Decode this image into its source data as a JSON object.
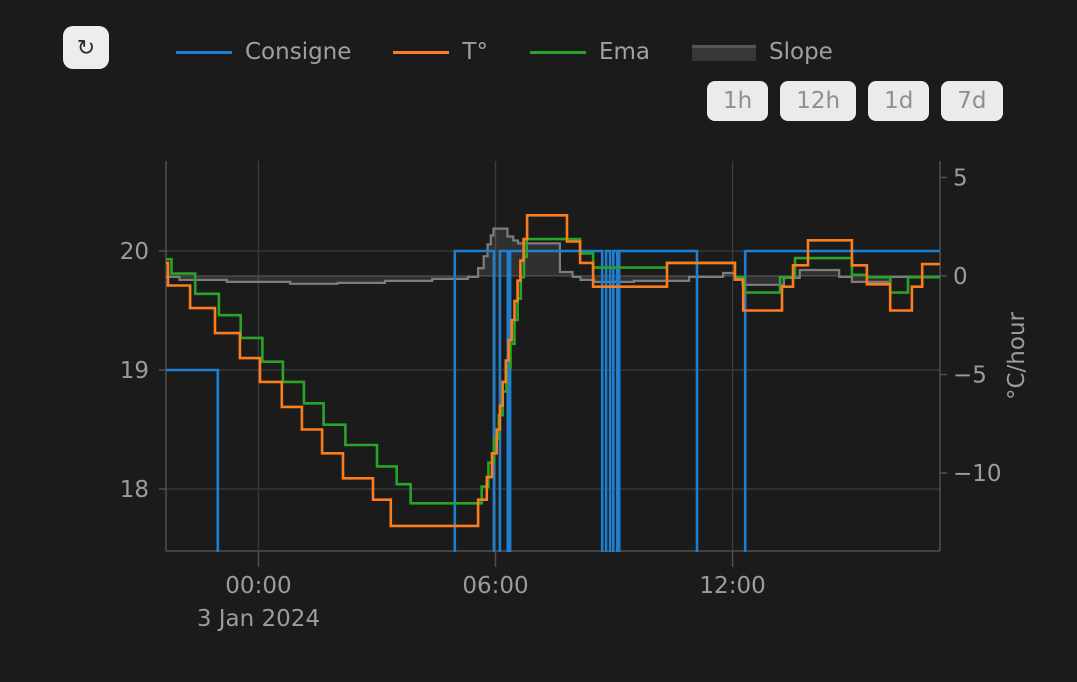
{
  "toolbar": {
    "refresh_icon": "↻"
  },
  "legend": {
    "items": [
      {
        "label": "Consigne",
        "swatch": "line",
        "color": "#1e7fd1"
      },
      {
        "label": "T°",
        "swatch": "line",
        "color": "#fb7d1d"
      },
      {
        "label": "Ema",
        "swatch": "line",
        "color": "#28a428"
      },
      {
        "label": "Slope",
        "swatch": "area",
        "color": "#565656",
        "fill": "#383838"
      }
    ]
  },
  "range_buttons": [
    {
      "label": "1h"
    },
    {
      "label": "12h"
    },
    {
      "label": "1d"
    },
    {
      "label": "7d"
    }
  ],
  "colors": {
    "background": "#1b1b1b",
    "grid": "#3d3d3d",
    "zero_line": "#464646",
    "axis": "#4f4f4f",
    "tick_text": "#9c9c9c",
    "legend_text": "#a0a0a0",
    "button_bg": "#ebebeb",
    "button_text": "#8f8f8f",
    "refresh_bg": "#ededed",
    "refresh_icon": "#2b2b2b"
  },
  "chart_data": {
    "type": "line",
    "title": "",
    "x_axis": {
      "kind": "time",
      "range_hours": [
        -2.34,
        17.25
      ],
      "ticks": [
        {
          "hours": 0,
          "label": "00:00"
        },
        {
          "hours": 6,
          "label": "06:00"
        },
        {
          "hours": 12,
          "label": "12:00"
        }
      ],
      "date_label": "3 Jan 2024",
      "date_label_hours": 0
    },
    "y_left": {
      "title": "",
      "range": [
        17.479,
        20.756
      ],
      "ticks": [
        {
          "value": 20,
          "label": "20"
        },
        {
          "value": 19,
          "label": "19"
        },
        {
          "value": 18,
          "label": "18"
        }
      ]
    },
    "y_right": {
      "title": "°C/hour",
      "range": [
        -13.95,
        5.83
      ],
      "zero_line": 0,
      "ticks": [
        {
          "value": 5,
          "label": "5"
        },
        {
          "value": 0,
          "label": "0"
        },
        {
          "value": -5,
          "label": "−5"
        },
        {
          "value": -10,
          "label": "−10"
        }
      ]
    },
    "series": [
      {
        "name": "Slope",
        "yaxis": "right",
        "mode": "step-area",
        "color": "#7d7d7d",
        "width": 2.2,
        "fill": "rgba(190,190,190,0.13)",
        "points": [
          [
            -2.34,
            -0.05
          ],
          [
            -2.0,
            -0.2
          ],
          [
            -0.8,
            -0.3
          ],
          [
            0.8,
            -0.4
          ],
          [
            2.0,
            -0.35
          ],
          [
            3.2,
            -0.25
          ],
          [
            4.4,
            -0.15
          ],
          [
            5.3,
            -0.05
          ],
          [
            5.56,
            0.4
          ],
          [
            5.7,
            1.0
          ],
          [
            5.8,
            1.6
          ],
          [
            5.88,
            2.05
          ],
          [
            5.95,
            2.4
          ],
          [
            6.3,
            2.0
          ],
          [
            6.45,
            1.8
          ],
          [
            6.57,
            1.65
          ],
          [
            7.63,
            0.2
          ],
          [
            7.95,
            -0.05
          ],
          [
            8.15,
            -0.2
          ],
          [
            8.5,
            -0.3
          ],
          [
            9.5,
            -0.25
          ],
          [
            10.9,
            -0.05
          ],
          [
            11.76,
            0.15
          ],
          [
            12.06,
            -0.2
          ],
          [
            12.25,
            -0.45
          ],
          [
            13.3,
            -0.1
          ],
          [
            13.7,
            0.3
          ],
          [
            14.7,
            -0.05
          ],
          [
            15.02,
            -0.3
          ],
          [
            16.0,
            -0.05
          ]
        ]
      },
      {
        "name": "Consigne",
        "yaxis": "left",
        "mode": "step-line",
        "color": "#1e7fd1",
        "width": 2.6,
        "points": [
          [
            -2.34,
            19.0
          ],
          [
            -1.03,
            17.3
          ],
          [
            4.97,
            20.0
          ],
          [
            5.96,
            17.3
          ],
          [
            6.11,
            20.0
          ],
          [
            6.31,
            17.3
          ],
          [
            6.37,
            20.0
          ],
          [
            8.7,
            17.3
          ],
          [
            8.8,
            20.0
          ],
          [
            8.9,
            17.3
          ],
          [
            8.98,
            20.0
          ],
          [
            9.08,
            17.3
          ],
          [
            9.13,
            20.0
          ],
          [
            11.1,
            17.3
          ],
          [
            12.32,
            20.0
          ]
        ]
      },
      {
        "name": "Ema",
        "yaxis": "left",
        "mode": "step-line",
        "color": "#28a428",
        "width": 2.6,
        "points": [
          [
            -2.34,
            19.93
          ],
          [
            -2.2,
            19.81
          ],
          [
            -1.6,
            19.64
          ],
          [
            -1.0,
            19.46
          ],
          [
            -0.45,
            19.27
          ],
          [
            0.1,
            19.07
          ],
          [
            0.62,
            18.9
          ],
          [
            1.15,
            18.72
          ],
          [
            1.65,
            18.54
          ],
          [
            2.2,
            18.37
          ],
          [
            3.0,
            18.19
          ],
          [
            3.5,
            18.04
          ],
          [
            3.85,
            17.88
          ],
          [
            5.65,
            18.02
          ],
          [
            5.82,
            18.22
          ],
          [
            5.96,
            18.42
          ],
          [
            6.08,
            18.62
          ],
          [
            6.18,
            18.82
          ],
          [
            6.28,
            19.02
          ],
          [
            6.38,
            19.22
          ],
          [
            6.48,
            19.42
          ],
          [
            6.56,
            19.6
          ],
          [
            6.64,
            19.78
          ],
          [
            6.72,
            19.95
          ],
          [
            6.79,
            20.1
          ],
          [
            8.14,
            19.98
          ],
          [
            8.47,
            19.86
          ],
          [
            10.34,
            19.9
          ],
          [
            12.06,
            19.78
          ],
          [
            12.3,
            19.65
          ],
          [
            13.2,
            19.78
          ],
          [
            13.58,
            19.94
          ],
          [
            15.02,
            19.8
          ],
          [
            15.4,
            19.78
          ],
          [
            15.99,
            19.65
          ],
          [
            16.44,
            19.78
          ]
        ]
      },
      {
        "name": "T°",
        "yaxis": "left",
        "mode": "step-line",
        "color": "#fb7d1d",
        "width": 2.6,
        "points": [
          [
            -2.34,
            19.9
          ],
          [
            -2.29,
            19.71
          ],
          [
            -1.73,
            19.52
          ],
          [
            -1.1,
            19.31
          ],
          [
            -0.47,
            19.1
          ],
          [
            0.04,
            18.9
          ],
          [
            0.59,
            18.69
          ],
          [
            1.1,
            18.5
          ],
          [
            1.61,
            18.3
          ],
          [
            2.14,
            18.09
          ],
          [
            2.9,
            17.91
          ],
          [
            3.35,
            17.69
          ],
          [
            5.56,
            17.91
          ],
          [
            5.78,
            18.1
          ],
          [
            5.91,
            18.3
          ],
          [
            6.03,
            18.5
          ],
          [
            6.11,
            18.7
          ],
          [
            6.18,
            18.9
          ],
          [
            6.26,
            19.08
          ],
          [
            6.33,
            19.25
          ],
          [
            6.41,
            19.42
          ],
          [
            6.48,
            19.58
          ],
          [
            6.56,
            19.75
          ],
          [
            6.63,
            19.92
          ],
          [
            6.71,
            20.1
          ],
          [
            6.8,
            20.3
          ],
          [
            7.81,
            20.08
          ],
          [
            8.14,
            19.9
          ],
          [
            8.47,
            19.7
          ],
          [
            10.34,
            19.9
          ],
          [
            12.06,
            19.76
          ],
          [
            12.27,
            19.5
          ],
          [
            13.25,
            19.7
          ],
          [
            13.53,
            19.88
          ],
          [
            13.91,
            20.09
          ],
          [
            15.02,
            19.88
          ],
          [
            15.4,
            19.72
          ],
          [
            15.99,
            19.5
          ],
          [
            16.54,
            19.7
          ],
          [
            16.8,
            19.89
          ]
        ]
      }
    ]
  }
}
